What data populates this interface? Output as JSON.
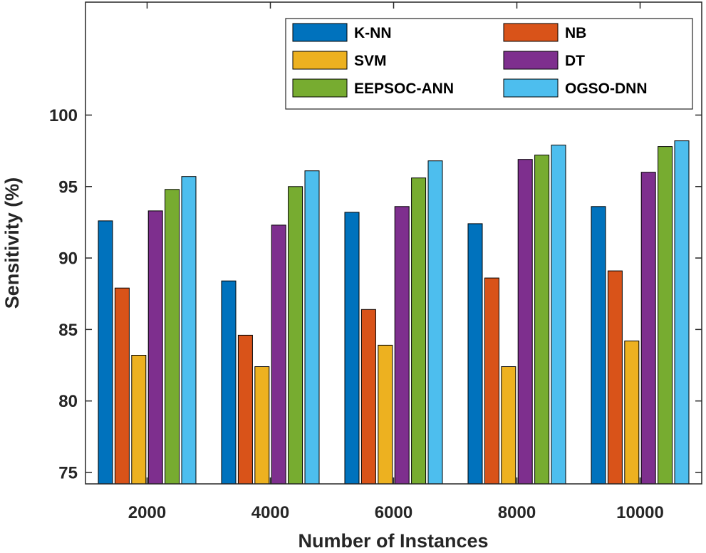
{
  "chart_data": {
    "type": "bar",
    "title": "",
    "xlabel": "Number of Instances",
    "ylabel": "Sensitivity (%)",
    "ylim": [
      74.2,
      107.9
    ],
    "yticks": [
      75,
      80,
      85,
      90,
      95,
      100
    ],
    "grid": false,
    "legend_position": "top-right",
    "categories": [
      "2000",
      "4000",
      "6000",
      "8000",
      "10000"
    ],
    "series": [
      {
        "name": "K-NN",
        "color": "#0072BD",
        "values": [
          92.6,
          88.4,
          93.2,
          92.4,
          93.6
        ]
      },
      {
        "name": "NB",
        "color": "#D95319",
        "values": [
          87.9,
          84.6,
          86.4,
          88.6,
          89.1
        ]
      },
      {
        "name": "SVM",
        "color": "#EDB120",
        "values": [
          83.2,
          82.4,
          83.9,
          82.4,
          84.2
        ]
      },
      {
        "name": "DT",
        "color": "#7E2F8E",
        "values": [
          93.3,
          92.3,
          93.6,
          96.9,
          96.0
        ]
      },
      {
        "name": "EEPSOC-ANN",
        "color": "#77AC30",
        "values": [
          94.8,
          95.0,
          95.6,
          97.2,
          97.8
        ]
      },
      {
        "name": "OGSO-DNN",
        "color": "#4DBEEE",
        "values": [
          95.7,
          96.1,
          96.8,
          97.9,
          98.2
        ]
      }
    ]
  }
}
